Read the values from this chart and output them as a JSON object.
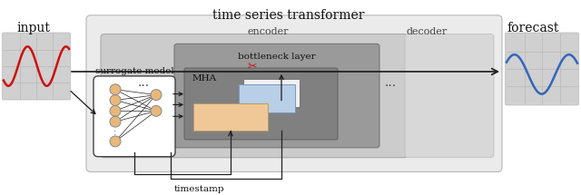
{
  "title": "time series transformer",
  "bg_color": "#ffffff",
  "input_label": "input",
  "forecast_label": "forecast",
  "surrogate_label": "surrogate model",
  "timestamp_label": "timestamp",
  "encoder_label": "encoder",
  "decoder_label": "decoder",
  "bottleneck_label": "bottleneck layer",
  "mha_label": "MHA",
  "light_gray": "#e4e4e4",
  "mid_gray": "#c0c0c0",
  "dark_gray": "#999999",
  "darker_gray": "#808080",
  "node_color": "#e8b87a",
  "ffn_box_color": "#f0c898",
  "blue_box_color": "#b8cfe8",
  "white_box_color": "#f0f0f0",
  "arrow_color": "#1a1a1a",
  "red_color": "#cc1111",
  "blue_line_color": "#3366bb",
  "red_line_color": "#cc1111",
  "grid_line_color": "#b8b8b8",
  "grid_fill_color": "#d0d0d0"
}
